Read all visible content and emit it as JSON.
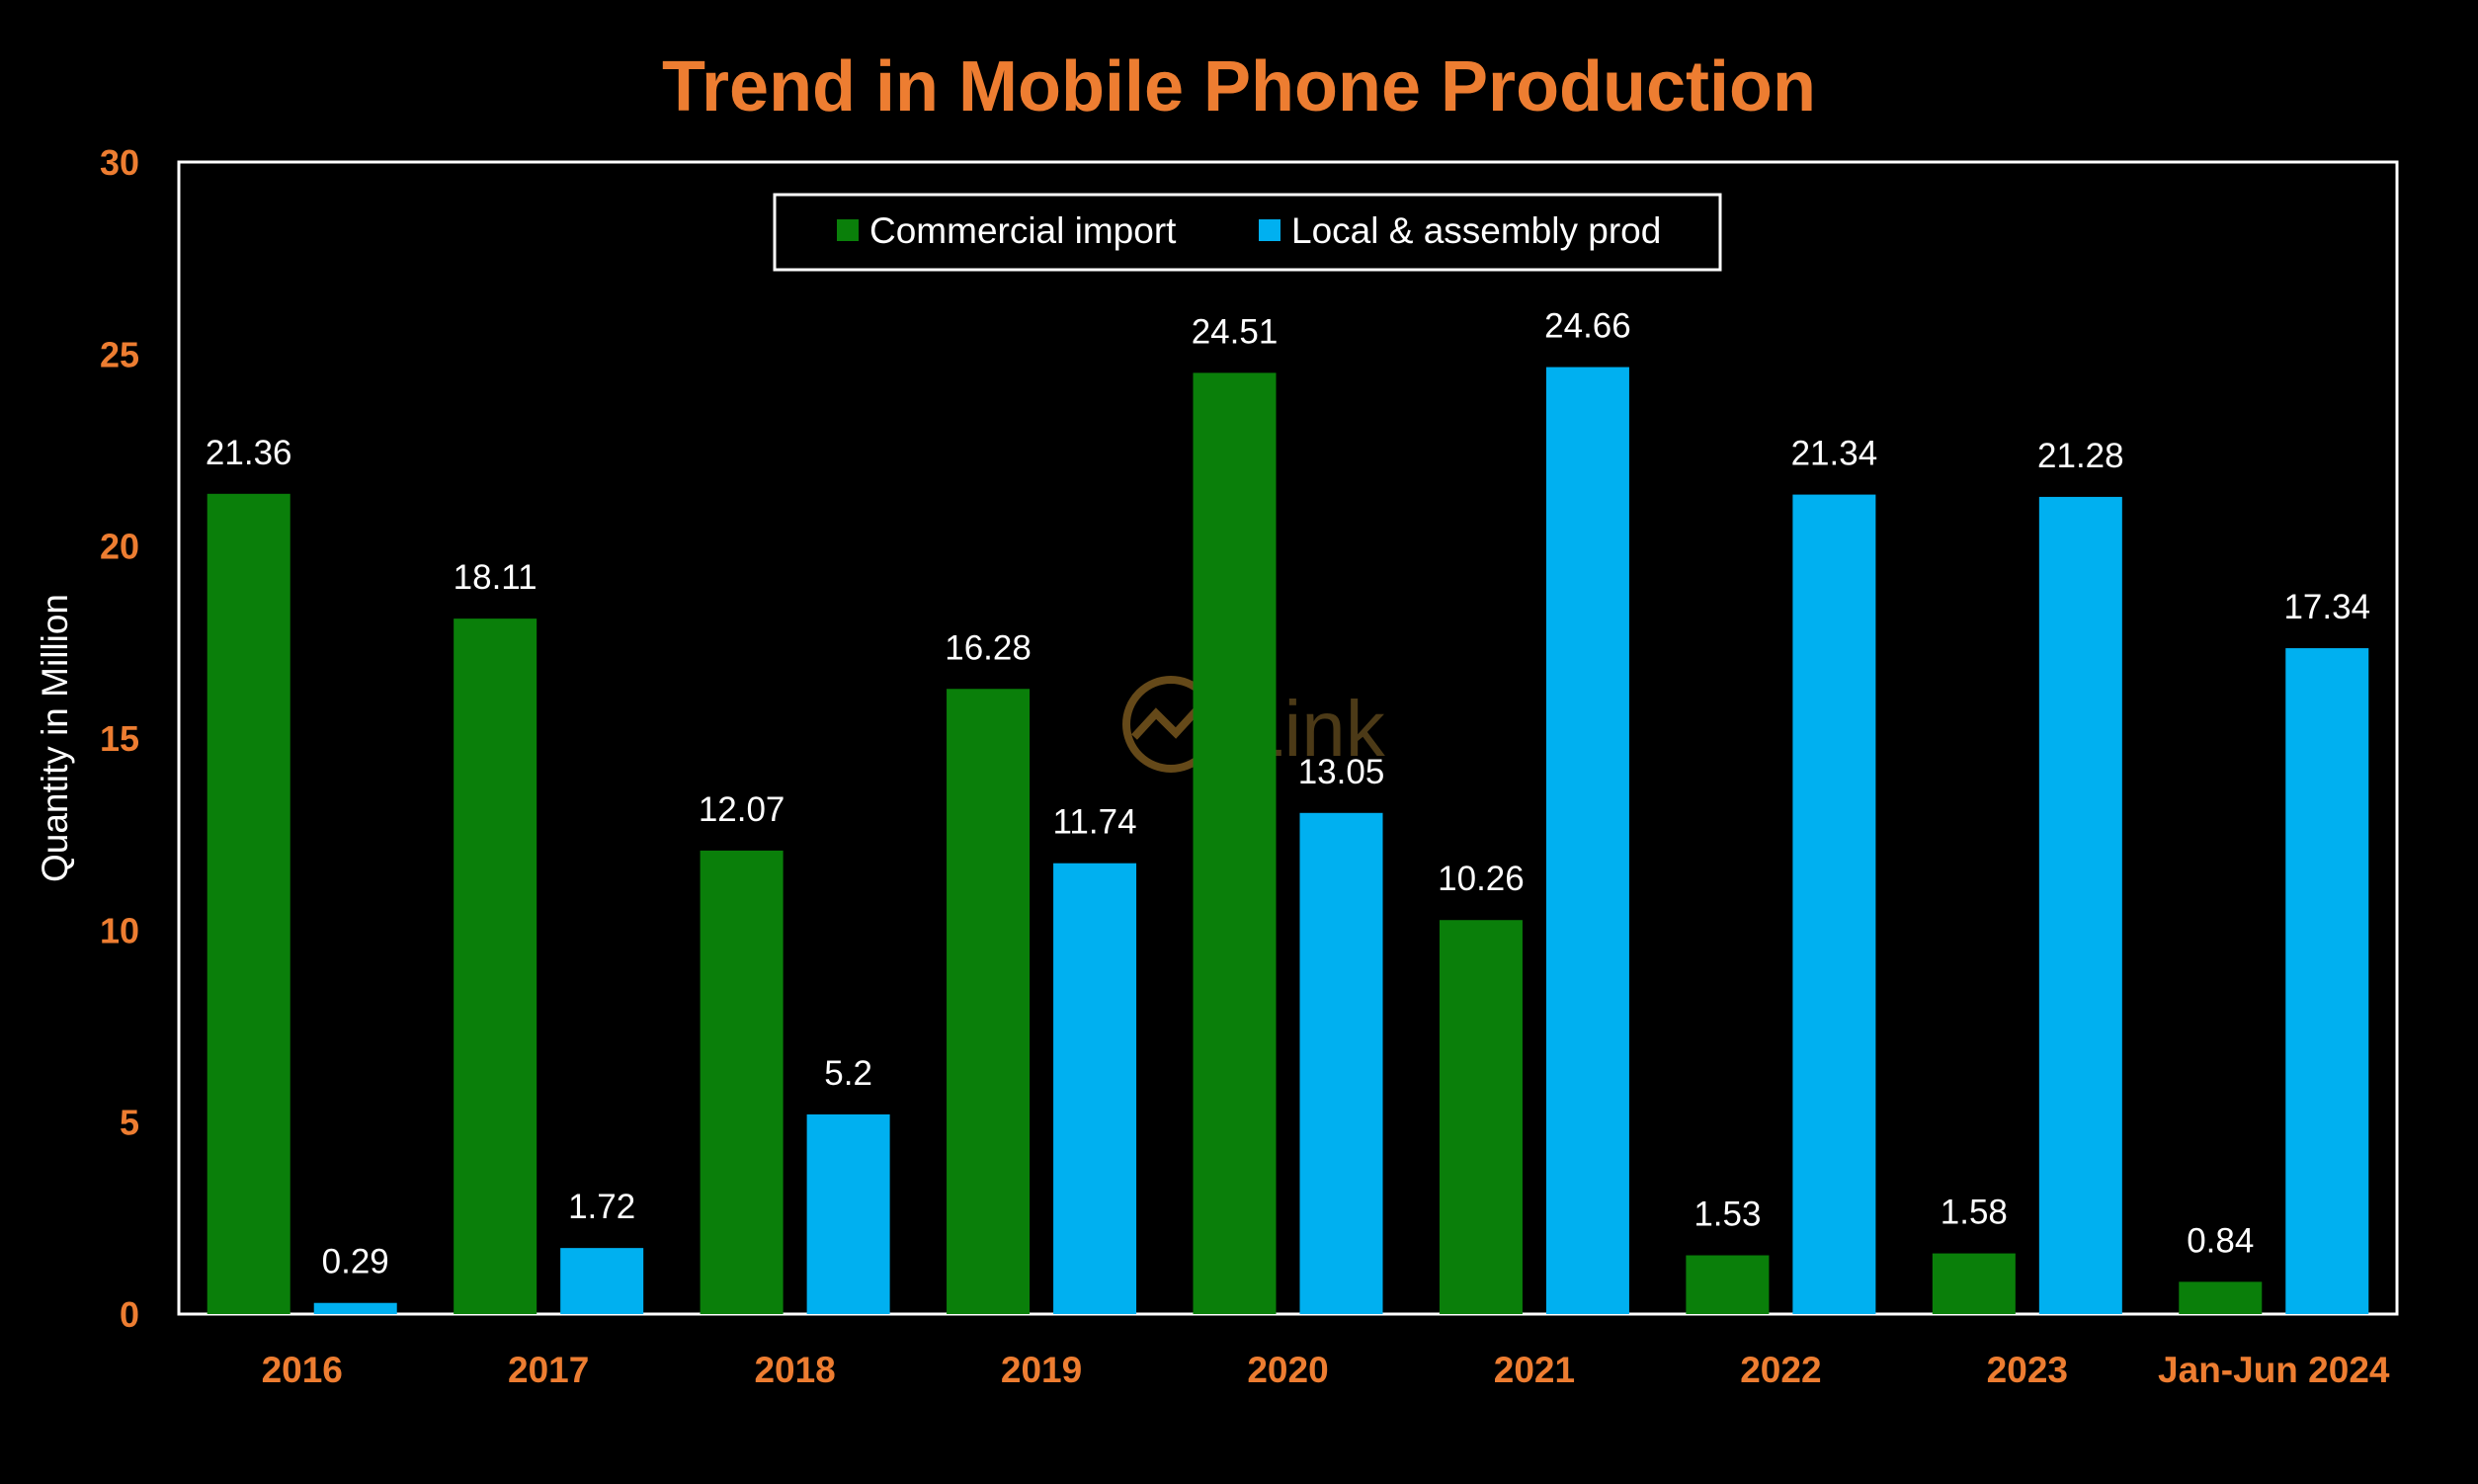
{
  "chart_data": {
    "type": "bar",
    "title": "Trend in Mobile Phone Production",
    "ylabel": "Quantity in Million",
    "xlabel": "",
    "ylim": [
      0,
      30
    ],
    "yticks": [
      "0",
      "5",
      "10",
      "15",
      "20",
      "25",
      "30"
    ],
    "categories": [
      "2016",
      "2017",
      "2018",
      "2019",
      "2020",
      "2021",
      "2022",
      "2023",
      "Jan-Jun 2024"
    ],
    "series": [
      {
        "name": "Commercial import",
        "color": "#0a7f0a",
        "values": [
          21.36,
          18.11,
          12.07,
          16.28,
          24.51,
          10.26,
          1.53,
          1.58,
          0.84
        ],
        "labels": [
          "21.36",
          "18.11",
          "12.07",
          "16.28",
          "24.51",
          "10.26",
          "1.53",
          "1.58",
          "0.84"
        ]
      },
      {
        "name": "Local & assembly prod",
        "color": "#00b0f0",
        "values": [
          0.29,
          1.72,
          5.2,
          11.74,
          13.05,
          24.66,
          21.34,
          21.28,
          17.34
        ],
        "labels": [
          "0.29",
          "1.72",
          "5.2",
          "11.74",
          "13.05",
          "24.66",
          "21.34",
          "21.28",
          "17.34"
        ]
      }
    ],
    "grid": false,
    "legend_position": "top-center",
    "colors": {
      "background": "#000000",
      "title": "#ed7d31",
      "tick_labels": "#ed7d31",
      "axis_text": "#ffffff",
      "frame": "#ffffff",
      "watermark": "#8a6a2a"
    }
  },
  "watermark": {
    "text": "Link",
    "icon": "chart-line-circle-icon"
  }
}
